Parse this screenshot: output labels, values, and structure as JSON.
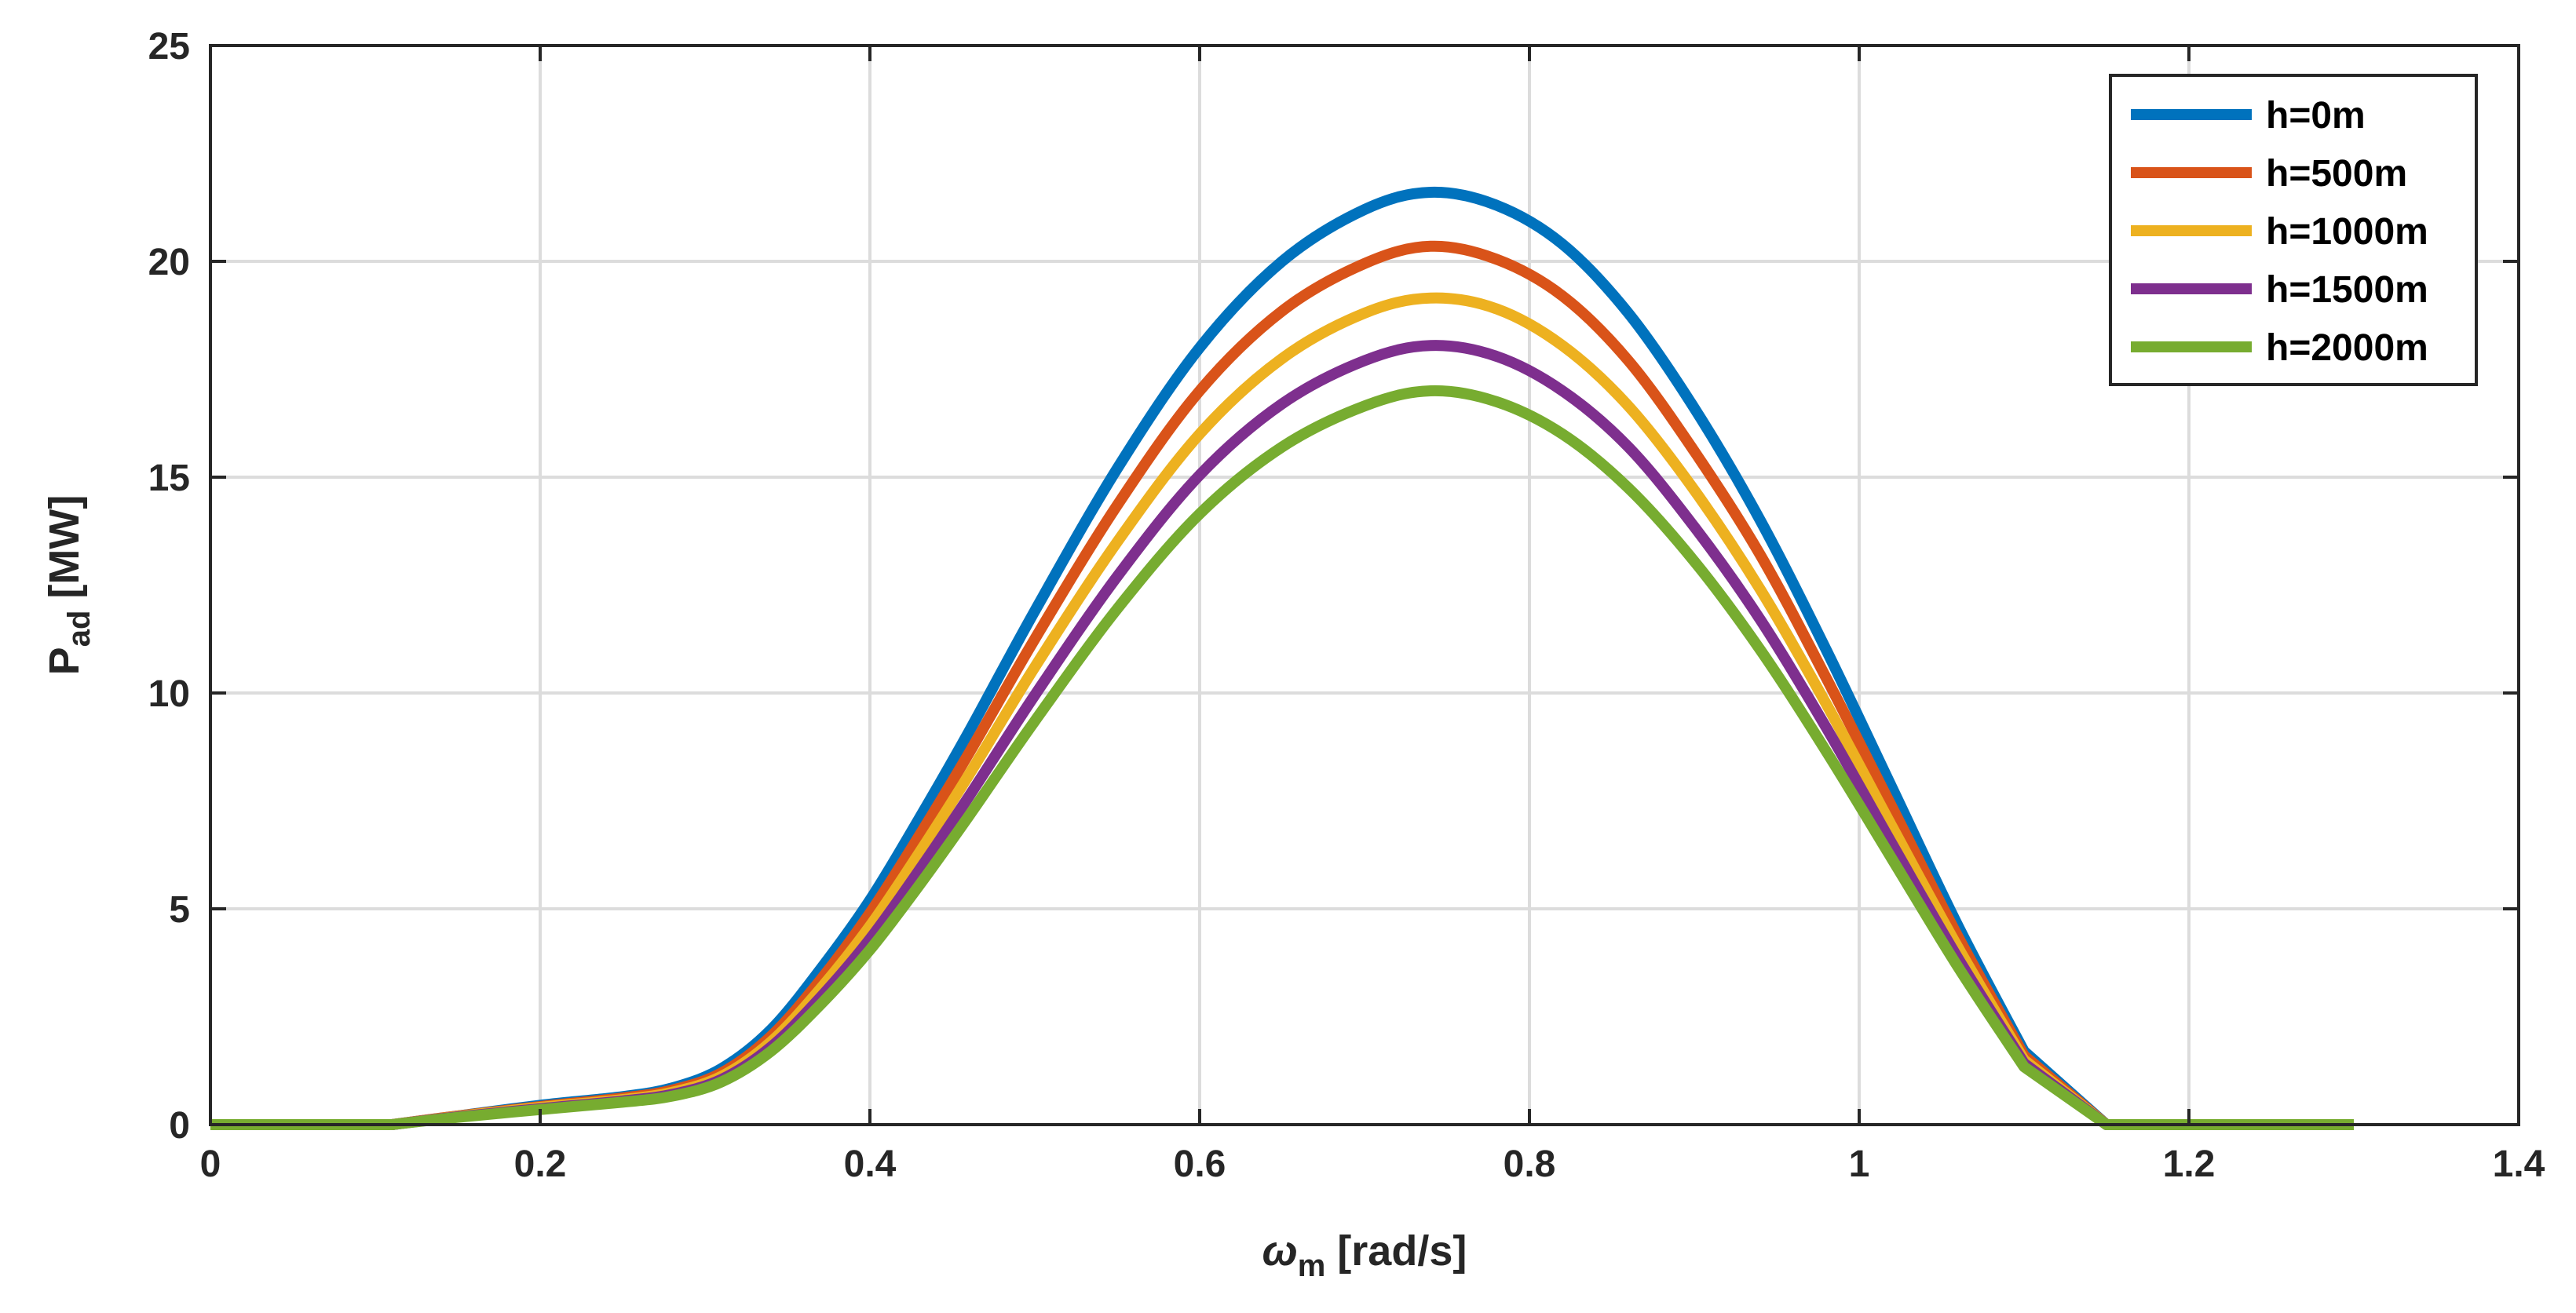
{
  "chart_data": {
    "type": "line",
    "title": "",
    "xlabel": {
      "symbol": "ω",
      "subscript": "m",
      "unit": " [rad/s]"
    },
    "ylabel": {
      "symbol": "P",
      "subscript": "ad",
      "unit": " [MW]"
    },
    "xlim": [
      0,
      1.4
    ],
    "ylim": [
      0,
      25
    ],
    "xticks": [
      0,
      0.2,
      0.4,
      0.6,
      0.8,
      1.0,
      1.2,
      1.4
    ],
    "xtick_labels": [
      "0",
      "0.2",
      "0.4",
      "0.6",
      "0.8",
      "1",
      "1.2",
      "1.4"
    ],
    "yticks": [
      0,
      5,
      10,
      15,
      20,
      25
    ],
    "ytick_labels": [
      "0",
      "5",
      "10",
      "15",
      "20",
      "25"
    ],
    "grid": true,
    "legend_position": "top-right",
    "x": [
      0,
      0.05,
      0.11,
      0.15,
      0.2,
      0.25,
      0.28,
      0.31,
      0.34,
      0.37,
      0.4,
      0.43,
      0.46,
      0.5,
      0.55,
      0.6,
      0.65,
      0.7,
      0.74,
      0.78,
      0.82,
      0.86,
      0.9,
      0.94,
      0.98,
      1.02,
      1.06,
      1.1,
      1.15,
      1.2,
      1.25,
      1.3
    ],
    "series": [
      {
        "name": "h=0m",
        "color": "#0072BD",
        "values": [
          0,
          0,
          0,
          0.2,
          0.45,
          0.65,
          0.85,
          1.3,
          2.2,
          3.6,
          5.2,
          7.1,
          9.1,
          11.9,
          15.2,
          18.0,
          20.0,
          21.2,
          21.6,
          21.3,
          20.4,
          18.8,
          16.6,
          14.0,
          11.0,
          7.8,
          4.6,
          1.7,
          0,
          0,
          0,
          0
        ]
      },
      {
        "name": "h=500m",
        "color": "#D95319",
        "values": [
          0,
          0,
          0,
          0.2,
          0.42,
          0.62,
          0.8,
          1.2,
          2.05,
          3.35,
          4.9,
          6.7,
          8.6,
          11.25,
          14.35,
          17.0,
          18.85,
          19.95,
          20.35,
          20.05,
          19.2,
          17.7,
          15.6,
          13.2,
          10.35,
          7.35,
          4.35,
          1.6,
          0,
          0,
          0,
          0
        ]
      },
      {
        "name": "h=1000m",
        "color": "#EDB120",
        "values": [
          0,
          0,
          0,
          0.19,
          0.4,
          0.58,
          0.75,
          1.12,
          1.92,
          3.15,
          4.6,
          6.3,
          8.1,
          10.6,
          13.5,
          16.0,
          17.75,
          18.8,
          19.15,
          18.9,
          18.05,
          16.65,
          14.7,
          12.4,
          9.75,
          6.9,
          4.1,
          1.5,
          0,
          0,
          0,
          0
        ]
      },
      {
        "name": "h=1500m",
        "color": "#7E2F8E",
        "values": [
          0,
          0,
          0,
          0.18,
          0.37,
          0.55,
          0.7,
          1.05,
          1.8,
          2.95,
          4.3,
          5.9,
          7.6,
          9.95,
          12.7,
          15.05,
          16.7,
          17.7,
          18.05,
          17.8,
          17.0,
          15.7,
          13.85,
          11.7,
          9.2,
          6.5,
          3.85,
          1.42,
          0,
          0,
          0,
          0
        ]
      },
      {
        "name": "h=2000m",
        "color": "#77AC30",
        "values": [
          0,
          0,
          0,
          0.17,
          0.35,
          0.52,
          0.66,
          0.99,
          1.7,
          2.78,
          4.05,
          5.55,
          7.15,
          9.35,
          11.95,
          14.15,
          15.7,
          16.65,
          17.0,
          16.75,
          16.0,
          14.75,
          13.05,
          11.0,
          8.65,
          6.15,
          3.65,
          1.34,
          0,
          0,
          0,
          0
        ]
      }
    ]
  }
}
